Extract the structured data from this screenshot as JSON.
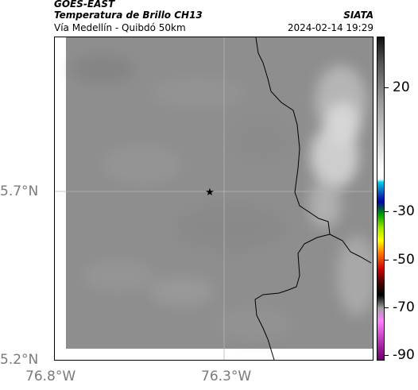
{
  "header": {
    "satellite": "GOES-EAST",
    "product": "Temperatura de Brillo CH13",
    "route": "Vía Medellín - Quibdó 50km",
    "brand": "SIATA",
    "datetime": "2024-02-14 19:29"
  },
  "map": {
    "lat_labels": [
      {
        "text": "5.7°N",
        "value": 5.7
      },
      {
        "text": "5.2°N",
        "value": 5.2
      }
    ],
    "lon_labels": [
      {
        "text": "76.8°W",
        "value": -76.8
      },
      {
        "text": "76.3°W",
        "value": -76.3
      }
    ],
    "marker_icon": "star-icon",
    "colors": {
      "background_gray": "#8e8e8e",
      "warm_cloud": "#c8c8c8"
    }
  },
  "colorbar": {
    "ticks": [
      {
        "text": "20",
        "value": 20
      },
      {
        "text": "-30",
        "value": -30
      },
      {
        "text": "-50",
        "value": -50
      },
      {
        "text": "-70",
        "value": -70
      },
      {
        "text": "-90",
        "value": -90
      }
    ]
  }
}
